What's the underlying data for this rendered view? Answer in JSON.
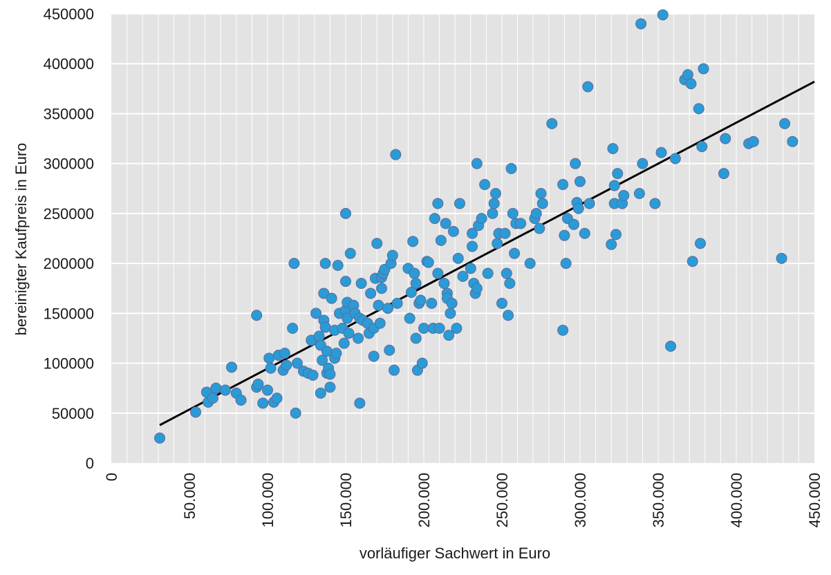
{
  "chart_data": {
    "type": "scatter",
    "title": "",
    "xlabel": "vorläufiger Sachwert in Euro",
    "ylabel": "bereinigter Kaufpreis in Euro",
    "xlim": [
      0,
      450000
    ],
    "ylim": [
      0,
      450000
    ],
    "x_tick_labels": [
      "0",
      "50.000",
      "100.000",
      "150.000",
      "200.000",
      "250.000",
      "300.000",
      "350.000",
      "400.000",
      "450.000"
    ],
    "y_tick_labels": [
      "0",
      "50000",
      "100000",
      "150000",
      "200000",
      "250000",
      "300000",
      "350000",
      "400000",
      "450000"
    ],
    "x_tick_values": [
      0,
      50000,
      100000,
      150000,
      200000,
      250000,
      300000,
      350000,
      400000,
      450000
    ],
    "y_tick_values": [
      0,
      50000,
      100000,
      150000,
      200000,
      250000,
      300000,
      350000,
      400000,
      450000
    ],
    "grid": true,
    "background_color": "#e3e3e3",
    "grid_color": "#ffffff",
    "point_color": "#2a9bd6",
    "point_edge_color": "#5d6b9a",
    "trendline_color": "#000000",
    "trendline": {
      "x": [
        31000,
        450000
      ],
      "y": [
        38000,
        382000
      ]
    },
    "x": [
      31000,
      54000,
      61000,
      62000,
      65000,
      67000,
      73000,
      77000,
      80000,
      83000,
      93000,
      93000,
      94000,
      97000,
      100000,
      101000,
      102000,
      104000,
      106000,
      107000,
      110000,
      111000,
      112000,
      116000,
      117000,
      118000,
      119000,
      123000,
      126000,
      128000,
      129000,
      131000,
      133000,
      134000,
      134000,
      135000,
      136000,
      136000,
      137000,
      137000,
      138000,
      138000,
      139000,
      140000,
      140000,
      141000,
      143000,
      143000,
      144000,
      145000,
      146000,
      148000,
      149000,
      150000,
      150000,
      150000,
      151000,
      151000,
      152000,
      153000,
      155000,
      156000,
      158000,
      159000,
      159000,
      160000,
      161000,
      164000,
      165000,
      166000,
      168000,
      168000,
      169000,
      170000,
      171000,
      172000,
      173000,
      173000,
      174000,
      175000,
      177000,
      178000,
      179000,
      180000,
      181000,
      182000,
      183000,
      190000,
      191000,
      192000,
      193000,
      194000,
      195000,
      195000,
      196000,
      197000,
      198000,
      199000,
      200000,
      202000,
      203000,
      205000,
      206000,
      207000,
      209000,
      209000,
      210000,
      211000,
      213000,
      214000,
      215000,
      215000,
      216000,
      217000,
      218000,
      219000,
      221000,
      222000,
      223000,
      225000,
      230000,
      231000,
      231000,
      232000,
      233000,
      234000,
      234000,
      235000,
      237000,
      239000,
      241000,
      244000,
      245000,
      246000,
      247000,
      248000,
      250000,
      252000,
      253000,
      254000,
      255000,
      256000,
      257000,
      258000,
      259000,
      262000,
      268000,
      271000,
      272000,
      274000,
      275000,
      276000,
      282000,
      289000,
      289000,
      290000,
      291000,
      292000,
      296000,
      297000,
      298000,
      299000,
      300000,
      303000,
      305000,
      306000,
      320000,
      321000,
      322000,
      322000,
      323000,
      324000,
      327000,
      328000,
      338000,
      339000,
      340000,
      348000,
      352000,
      353000,
      358000,
      361000,
      367000,
      369000,
      371000,
      372000,
      376000,
      377000,
      378000,
      379000,
      392000,
      393000,
      408000,
      411000,
      429000,
      431000,
      436000
    ],
    "y": [
      25000,
      51000,
      71000,
      61000,
      65000,
      75000,
      73000,
      96000,
      70000,
      63000,
      148000,
      76000,
      79000,
      60000,
      73000,
      105000,
      95000,
      61000,
      65000,
      108000,
      93000,
      110000,
      98000,
      135000,
      200000,
      50000,
      100000,
      92000,
      90000,
      123000,
      88000,
      150000,
      127000,
      70000,
      118000,
      103000,
      170000,
      143000,
      136000,
      200000,
      90000,
      112000,
      95000,
      76000,
      89000,
      165000,
      105000,
      133000,
      110000,
      198000,
      150000,
      135000,
      120000,
      250000,
      182000,
      153000,
      145000,
      161000,
      130000,
      210000,
      158000,
      150000,
      125000,
      145000,
      60000,
      180000,
      143000,
      140000,
      130000,
      170000,
      107000,
      135000,
      185000,
      220000,
      158000,
      140000,
      175000,
      186000,
      190000,
      194000,
      155000,
      113000,
      200000,
      208000,
      93000,
      309000,
      160000,
      195000,
      145000,
      171000,
      222000,
      190000,
      180000,
      125000,
      93000,
      160000,
      163000,
      100000,
      135000,
      202000,
      201000,
      160000,
      135000,
      245000,
      260000,
      190000,
      135000,
      223000,
      180000,
      240000,
      170000,
      165000,
      128000,
      150000,
      160000,
      232000,
      135000,
      205000,
      260000,
      187000,
      195000,
      230000,
      217000,
      180000,
      170000,
      300000,
      175000,
      238000,
      245000,
      279000,
      190000,
      250000,
      260000,
      270000,
      220000,
      230000,
      160000,
      230000,
      190000,
      148000,
      180000,
      295000,
      250000,
      210000,
      240000,
      240000,
      200000,
      245000,
      250000,
      235000,
      270000,
      260000,
      340000,
      133000,
      279000,
      228000,
      200000,
      245000,
      239000,
      300000,
      261000,
      255000,
      282000,
      230000,
      377000,
      260000,
      219000,
      315000,
      278000,
      260000,
      229000,
      290000,
      260000,
      268000,
      270000,
      440000,
      300000,
      260000,
      311000,
      449000,
      117000,
      305000,
      384000,
      389000,
      380000,
      202000,
      355000,
      220000,
      317000,
      395000,
      290000,
      325000,
      320000,
      322000,
      205000,
      340000,
      322000
    ]
  }
}
